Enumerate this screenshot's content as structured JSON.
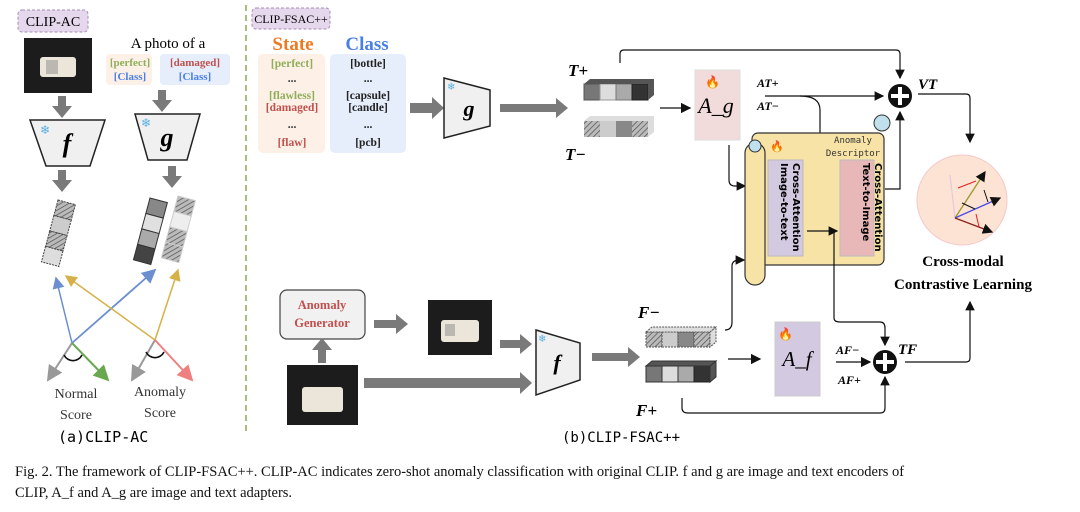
{
  "panel_a": {
    "tag": "CLIP-AC",
    "prompt": "A photo of a",
    "prompt_normal_state": "[perfect]",
    "prompt_anomaly_state": "[damaged]",
    "prompt_class": "[Class]",
    "image_encoder": "f",
    "text_encoder": "g",
    "normal_score": [
      "Normal",
      "Score"
    ],
    "anomaly_score": [
      "Anomaly",
      "Score"
    ],
    "label": "(a)CLIP-AC"
  },
  "panel_b": {
    "tag": "CLIP-FSAC++",
    "state_header": "State",
    "class_header": "Class",
    "state_items": [
      "[perfect]",
      "...",
      "[flawless]",
      "[damaged]",
      "...",
      "[flaw]"
    ],
    "class_items": [
      "[bottle]",
      "...",
      "[capsule]",
      "[candle]",
      "...",
      "[pcb]"
    ],
    "text_encoder": "g",
    "image_encoder": "f",
    "t_plus": "T+",
    "t_minus": "T−",
    "text_adapter": "A_g",
    "at_plus": "AT+",
    "at_minus": "AT−",
    "vt": "VT",
    "anomaly_descriptor": [
      "Anomaly",
      "Descriptor"
    ],
    "i2t": [
      "Image-to-text",
      "Cross-Attention"
    ],
    "t2i": [
      "Text-to-Image",
      "Cross-Attention"
    ],
    "anomaly_generator": [
      "Anomaly",
      "Generator"
    ],
    "f_minus": "F−",
    "f_plus": "F+",
    "image_adapter": "A_f",
    "af_minus": "AF−",
    "af_plus": "AF+",
    "tf": "TF",
    "contrastive": [
      "Cross-modal",
      "Contrastive Learning"
    ],
    "label": "(b)CLIP-FSAC++"
  },
  "caption": {
    "line1": "Fig. 2.  The framework of CLIP-FSAC++. CLIP-AC indicates zero-shot anomaly classification with original CLIP. f and g are image and text encoders of",
    "line2": "CLIP, A_f and A_g are image and text adapters."
  },
  "colors": {
    "normal_green": "#8fae5a",
    "anomaly_red": "#c0504d",
    "class_blue": "#4a7fe6",
    "state_orange": "#ee7a22",
    "tag_purple": "#e6d8ec",
    "adapter_pink": "#f2dcdb",
    "adapter_lavender": "#d3c9e0",
    "scroll_yellow": "#f7e3a6",
    "divider_green": "#7a9a3a"
  },
  "icons": [
    "snowflake-icon (frozen)",
    "flame-icon (trainable)",
    "oplus-icon (fusion)"
  ]
}
